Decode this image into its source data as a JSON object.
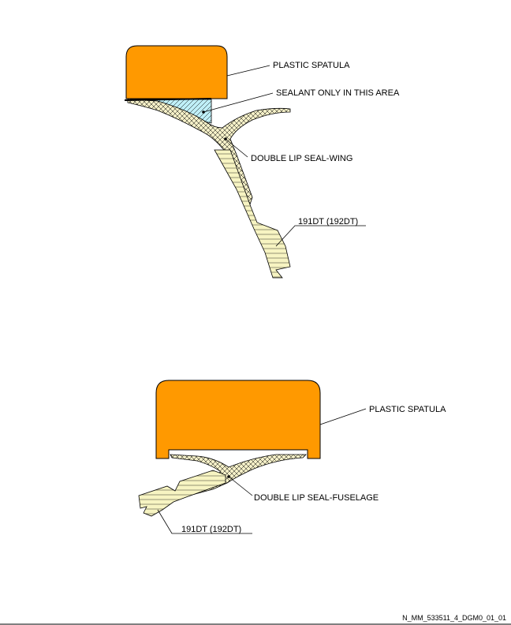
{
  "diagram_top": {
    "labels": {
      "spatula": "PLASTIC SPATULA",
      "sealant": "SEALANT ONLY  IN THIS AREA",
      "seal": "DOUBLE LIP SEAL-WING",
      "part": "191DT  (192DT)"
    }
  },
  "diagram_bottom": {
    "labels": {
      "spatula": "PLASTIC SPATULA",
      "seal": "DOUBLE LIP SEAL-FUSELAGE",
      "part": "191DT  (192DT)"
    }
  },
  "footer": {
    "reference": "N_MM_533511_4_DGM0_01_01"
  },
  "colors": {
    "spatula": "#FF9900",
    "sealant": "#BFEFF7",
    "seal_fill": "#F5F0C8",
    "part_fill": "#F7F4C2",
    "line": "#000000"
  }
}
